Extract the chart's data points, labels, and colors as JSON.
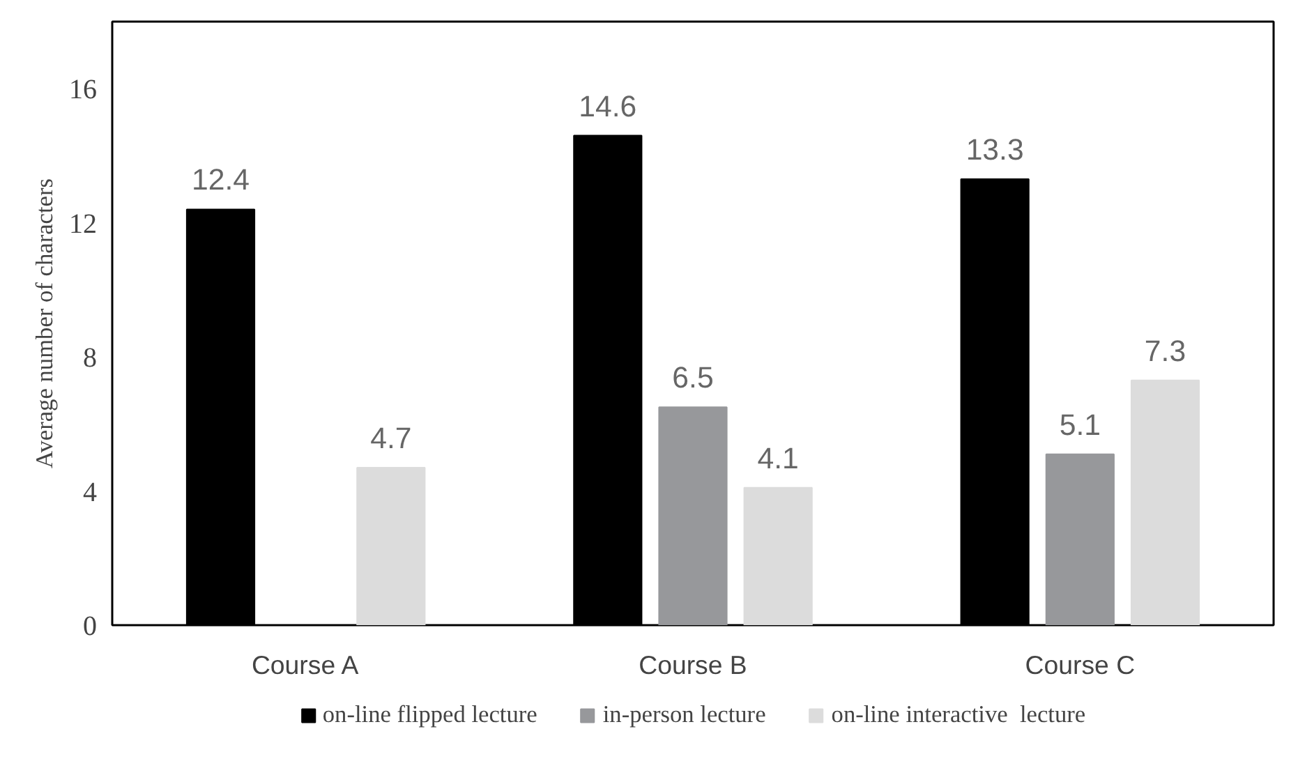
{
  "chart_data": {
    "type": "bar",
    "ylabel": "Average number of characters",
    "categories": [
      "Course A",
      "Course B",
      "Course C"
    ],
    "series": [
      {
        "name": "on-line flipped lecture",
        "color": "#000000",
        "values": [
          12.4,
          14.6,
          13.3
        ]
      },
      {
        "name": "in-person lecture",
        "color": "#97989b",
        "values": [
          null,
          6.5,
          5.1
        ]
      },
      {
        "name": "on-line interactive  lecture",
        "color": "#dcdcdc",
        "values": [
          4.7,
          4.1,
          7.3
        ]
      }
    ],
    "ylim": [
      0,
      18
    ],
    "yticks": [
      0,
      4,
      8,
      12,
      16
    ],
    "grid": false,
    "legend": "bottom",
    "data_labels": true
  }
}
